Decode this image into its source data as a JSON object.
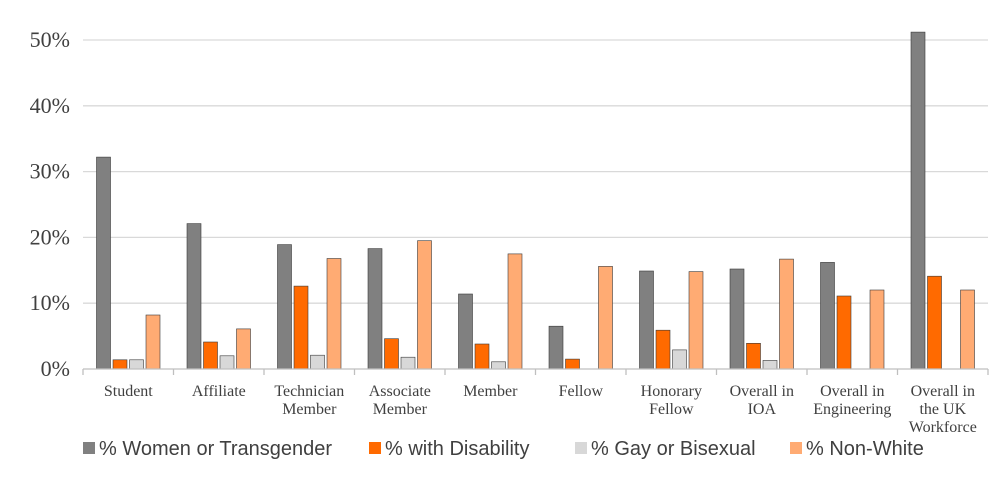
{
  "chart_data": {
    "type": "bar",
    "title": "",
    "xlabel": "",
    "ylabel": "",
    "ylim": [
      0,
      50
    ],
    "yticks": [
      0,
      10,
      20,
      30,
      40,
      50
    ],
    "ytick_labels": [
      "0%",
      "10%",
      "20%",
      "30%",
      "40%",
      "50%"
    ],
    "grid": true,
    "legend_position": "bottom",
    "categories": [
      [
        "Student"
      ],
      [
        "Affiliate"
      ],
      [
        "Technician",
        "Member"
      ],
      [
        "Associate",
        "Member"
      ],
      [
        "Member"
      ],
      [
        "Fellow"
      ],
      [
        "Honorary",
        "Fellow"
      ],
      [
        "Overall in",
        "IOA"
      ],
      [
        "Overall in",
        "Engineering"
      ],
      [
        "Overall in",
        "the UK",
        "Workforce"
      ]
    ],
    "series": [
      {
        "name": "% Women or Transgender",
        "color": "#808080",
        "values": [
          32.2,
          22.1,
          18.9,
          18.3,
          11.4,
          6.5,
          14.9,
          15.2,
          16.2,
          51.2
        ]
      },
      {
        "name": "% with Disability",
        "color": "#FF6A00",
        "values": [
          1.4,
          4.1,
          12.6,
          4.6,
          3.8,
          1.5,
          5.9,
          3.9,
          11.1,
          14.1
        ]
      },
      {
        "name": "% Gay or Bisexual",
        "color": "#D8D8D8",
        "values": [
          1.4,
          2.0,
          2.1,
          1.8,
          1.1,
          0,
          2.9,
          1.3,
          0,
          0
        ]
      },
      {
        "name": "% Non-White",
        "color": "#FFAB73",
        "values": [
          8.2,
          6.1,
          16.8,
          19.5,
          17.5,
          15.6,
          14.8,
          16.7,
          12.0,
          12.0
        ]
      }
    ]
  }
}
